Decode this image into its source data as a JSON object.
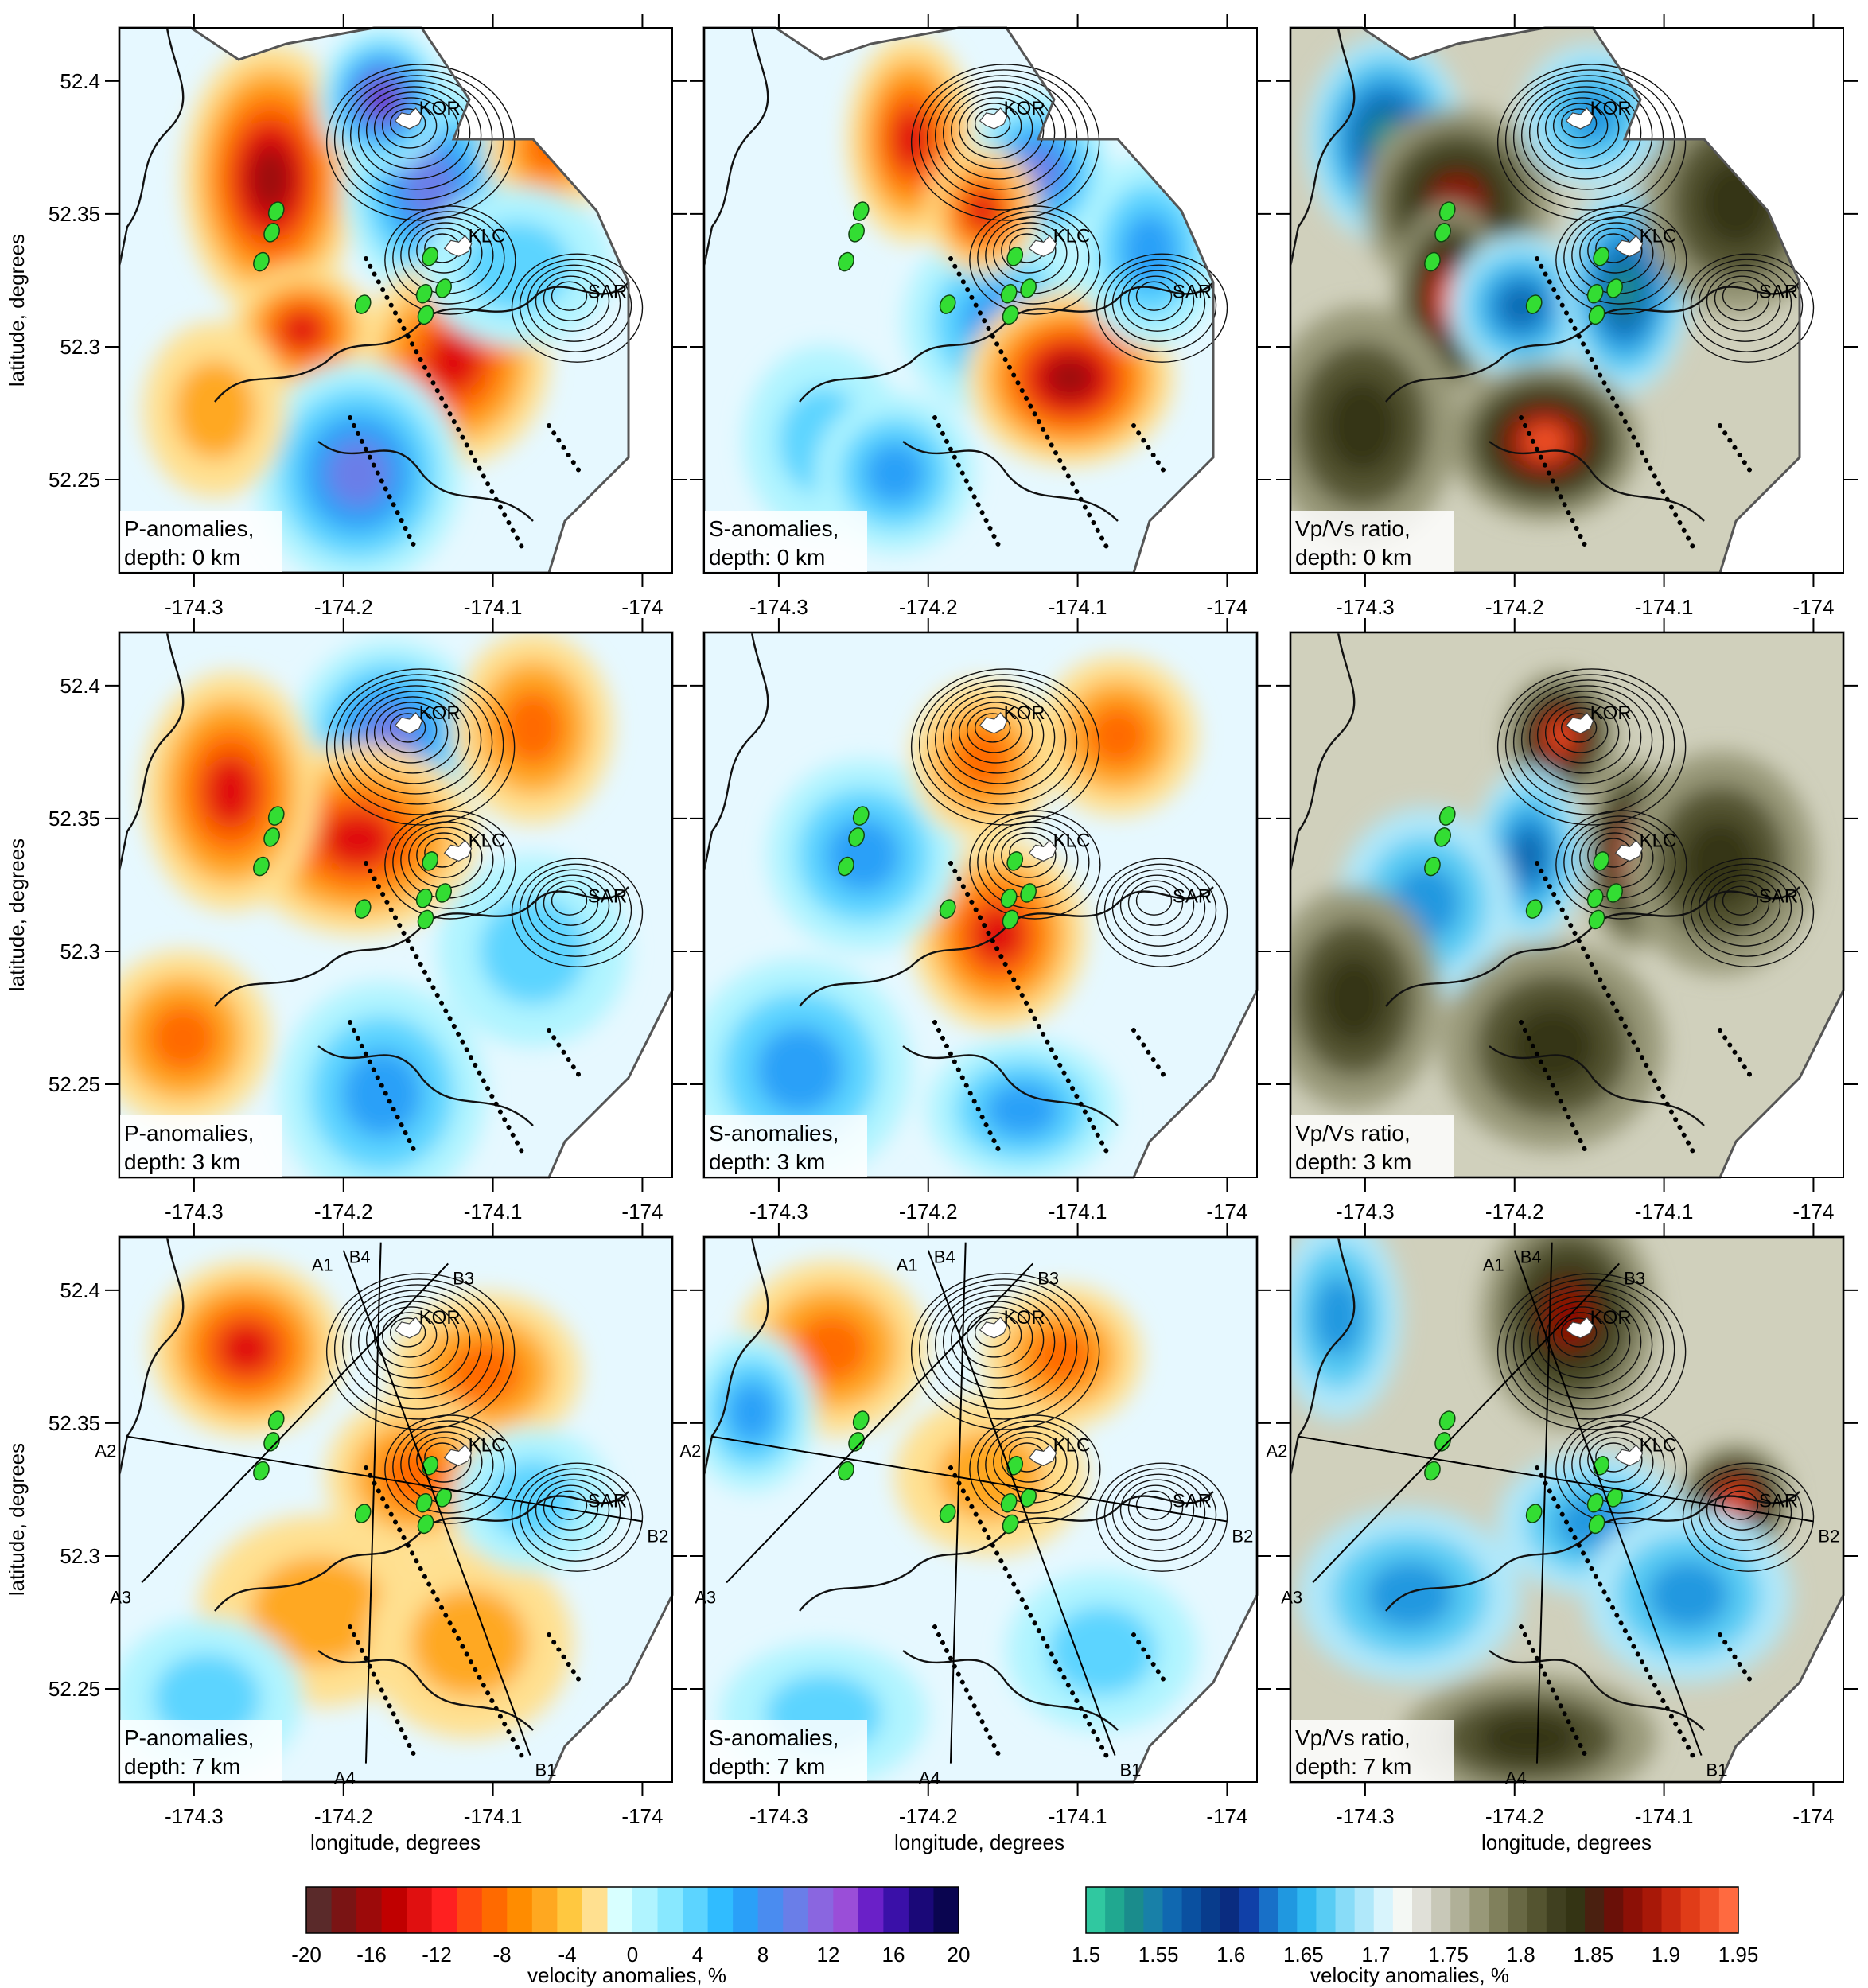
{
  "axes": {
    "ylabel": "latitude, degrees",
    "xlabel": "longitude, degrees",
    "lon_ticks": [
      "-174.3",
      "-174.2",
      "-174.1",
      "-174"
    ],
    "lat_ticks": [
      "52.4",
      "52.35",
      "52.3",
      "52.25"
    ],
    "lon_range": [
      -174.35,
      -173.98
    ],
    "lat_range": [
      52.215,
      52.42
    ]
  },
  "volcanoes": [
    "KOR",
    "KLC",
    "SAR"
  ],
  "profile_labels": [
    "A1",
    "A2",
    "A3",
    "A4",
    "B1",
    "B2",
    "B3",
    "B4"
  ],
  "panels": [
    {
      "title": "P-anomalies,",
      "depth": "depth: 0 km",
      "type": "p",
      "variant": 0
    },
    {
      "title": "S-anomalies,",
      "depth": "depth: 0 km",
      "type": "s",
      "variant": 0
    },
    {
      "title": "Vp/Vs ratio,",
      "depth": "depth: 0 km",
      "type": "r",
      "variant": 0
    },
    {
      "title": "P-anomalies,",
      "depth": "depth: 3 km",
      "type": "p",
      "variant": 1
    },
    {
      "title": "S-anomalies,",
      "depth": "depth: 3 km",
      "type": "s",
      "variant": 1
    },
    {
      "title": "Vp/Vs ratio,",
      "depth": "depth: 3 km",
      "type": "r",
      "variant": 1
    },
    {
      "title": "P-anomalies,",
      "depth": "depth: 7 km",
      "type": "p",
      "variant": 2
    },
    {
      "title": "S-anomalies,",
      "depth": "depth: 7 km",
      "type": "s",
      "variant": 2
    },
    {
      "title": "Vp/Vs ratio,",
      "depth": "depth: 7 km",
      "type": "r",
      "variant": 2
    }
  ],
  "colorbar_velocity": {
    "ticks": [
      "-20",
      "-16",
      "-12",
      "-8",
      "-4",
      "0",
      "4",
      "8",
      "12",
      "16",
      "20"
    ],
    "label": "velocity anomalies, %",
    "colors": [
      "#5a2a2a",
      "#7a1414",
      "#9c0a0a",
      "#c00000",
      "#e01010",
      "#ff2020",
      "#ff4a10",
      "#ff6a00",
      "#ff8c00",
      "#ffa820",
      "#ffc840",
      "#ffe090",
      "#d8ffff",
      "#b0f4ff",
      "#88e8ff",
      "#5cd4ff",
      "#30bcff",
      "#2aa0f8",
      "#4a8cf0",
      "#6a7ee8",
      "#8a66e0",
      "#9a4ed8",
      "#6a20c8",
      "#3a10a8",
      "#1a0878",
      "#0a0550"
    ]
  },
  "colorbar_ratio": {
    "ticks": [
      "1.5",
      "1.55",
      "1.6",
      "1.65",
      "1.7",
      "1.75",
      "1.8",
      "1.85",
      "1.9",
      "1.95"
    ],
    "label": "velocity anomalies, %",
    "colors": [
      "#30c8a0",
      "#20a890",
      "#1a8c8c",
      "#1880a8",
      "#1068b0",
      "#0a50a0",
      "#083c8c",
      "#0a2c80",
      "#1040a8",
      "#1870c8",
      "#2098e0",
      "#30b8f0",
      "#58ccf4",
      "#88dcf8",
      "#b0e8fa",
      "#d8f4fc",
      "#f4f8f4",
      "#e0e0d8",
      "#c8c8b8",
      "#b0b098",
      "#989878",
      "#80805c",
      "#686844",
      "#545430",
      "#404020",
      "#343414",
      "#4a2010",
      "#6a1008",
      "#8c1006",
      "#a81808",
      "#c82810",
      "#e03c18",
      "#f05028",
      "#ff6a40"
    ]
  }
}
